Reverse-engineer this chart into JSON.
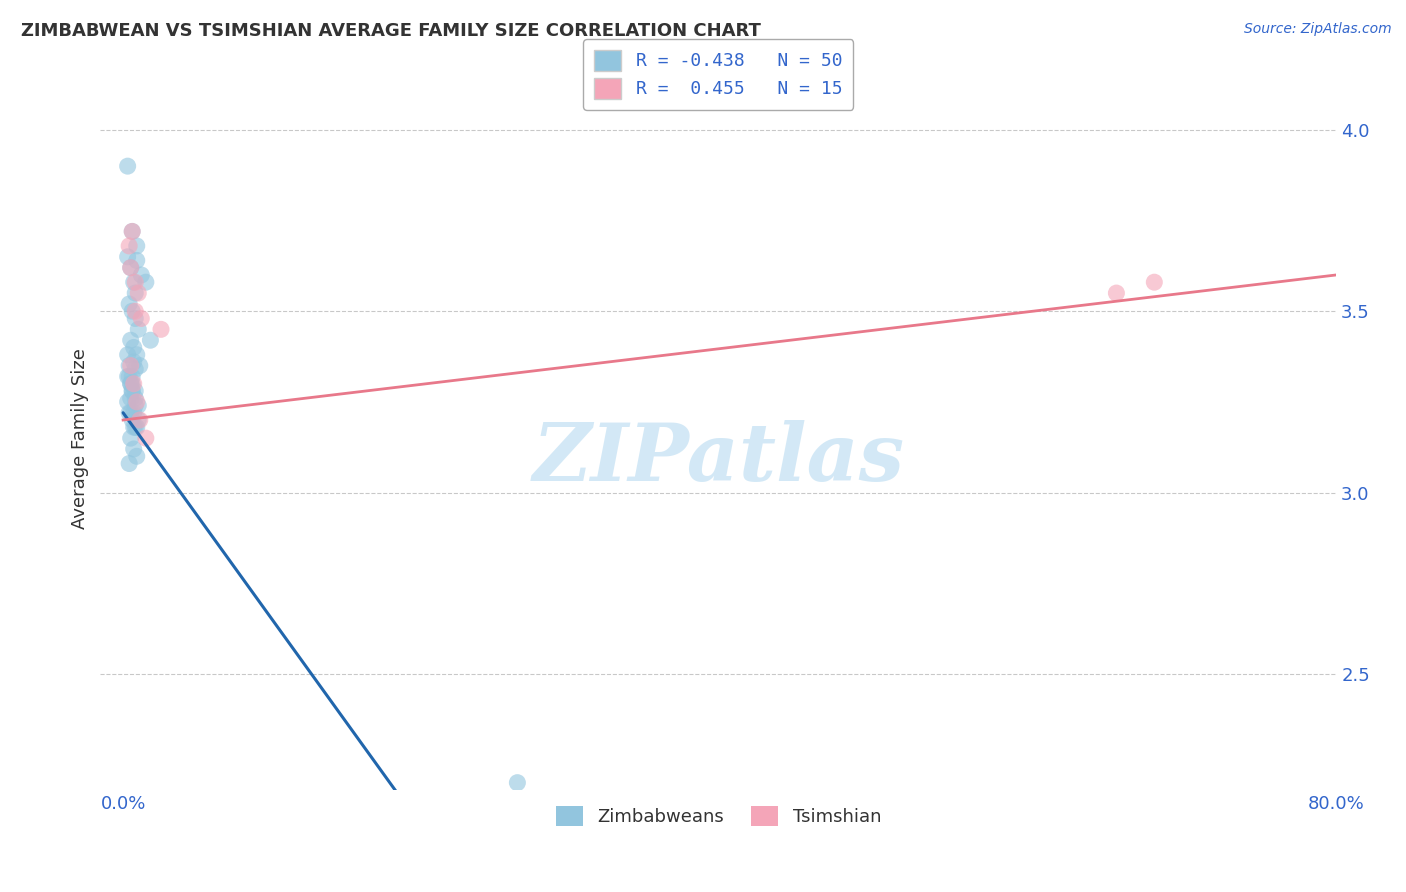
{
  "title": "ZIMBABWEAN VS TSIMSHIAN AVERAGE FAMILY SIZE CORRELATION CHART",
  "source": "Source: ZipAtlas.com",
  "ylabel": "Average Family Size",
  "xlim": [
    -1.5,
    80.0
  ],
  "ylim": [
    2.18,
    4.12
  ],
  "yticks": [
    2.5,
    3.0,
    3.5,
    4.0
  ],
  "xticks": [
    0,
    80
  ],
  "xticklabels": [
    "0.0%",
    "80.0%"
  ],
  "blue_color": "#92c5de",
  "pink_color": "#f4a5b8",
  "blue_line_color": "#2166ac",
  "pink_line_color": "#e8788a",
  "watermark_text": "ZIPatlas",
  "watermark_color": "#cce5f5",
  "background_color": "#ffffff",
  "grid_color": "#bbbbbb",
  "legend1_blue_label": "R = -0.438   N = 50",
  "legend1_pink_label": "R =  0.455   N = 15",
  "legend2_labels": [
    "Zimbabweans",
    "Tsimshian"
  ],
  "blue_scatter_x": [
    0.3,
    0.6,
    0.9,
    0.9,
    1.2,
    1.5,
    0.3,
    0.5,
    0.7,
    0.8,
    0.4,
    0.6,
    0.8,
    1.0,
    0.5,
    0.7,
    0.9,
    1.1,
    0.3,
    0.5,
    0.6,
    0.8,
    1.0,
    0.4,
    0.6,
    0.8,
    0.5,
    0.7,
    0.9,
    0.4,
    0.3,
    0.5,
    0.7,
    0.6,
    0.8,
    1.0,
    0.4,
    0.6,
    0.8,
    0.5,
    0.7,
    0.9,
    0.4,
    0.6,
    0.5,
    0.3,
    0.7,
    0.8,
    26.0,
    1.8
  ],
  "blue_scatter_y": [
    3.9,
    3.72,
    3.68,
    3.64,
    3.6,
    3.58,
    3.65,
    3.62,
    3.58,
    3.55,
    3.52,
    3.5,
    3.48,
    3.45,
    3.42,
    3.4,
    3.38,
    3.35,
    3.32,
    3.3,
    3.28,
    3.26,
    3.24,
    3.22,
    3.2,
    3.18,
    3.15,
    3.12,
    3.1,
    3.08,
    3.25,
    3.22,
    3.18,
    3.28,
    3.24,
    3.2,
    3.32,
    3.3,
    3.28,
    3.26,
    3.22,
    3.18,
    3.35,
    3.32,
    3.3,
    3.38,
    3.36,
    3.34,
    2.2,
    3.42
  ],
  "pink_scatter_x": [
    0.5,
    0.8,
    1.0,
    0.4,
    0.6,
    0.8,
    1.2,
    2.5,
    0.5,
    0.7,
    0.9,
    1.1,
    1.5,
    65.5,
    68.0
  ],
  "pink_scatter_y": [
    3.62,
    3.58,
    3.55,
    3.68,
    3.72,
    3.5,
    3.48,
    3.45,
    3.35,
    3.3,
    3.25,
    3.2,
    3.15,
    3.55,
    3.58
  ],
  "blue_line_x0": 0.0,
  "blue_line_y0": 3.22,
  "blue_line_slope": -0.058,
  "blue_line_solid_end_x": 26.5,
  "blue_line_dash_end_x": 35.0,
  "pink_line_x0": 0.0,
  "pink_line_y0": 3.2,
  "pink_line_x1": 80.0,
  "pink_line_y1": 3.6
}
